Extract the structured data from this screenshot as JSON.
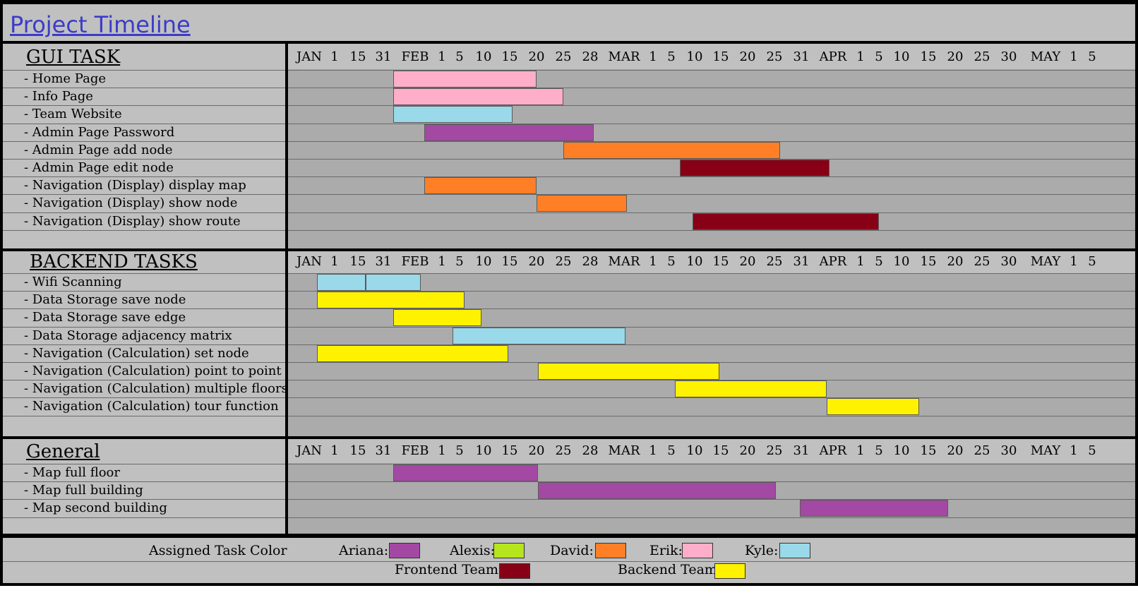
{
  "title": "Project Timeline",
  "tick_labels": [
    "JAN",
    "1",
    "15",
    "31",
    "FEB",
    "1",
    "5",
    "10",
    "15",
    "20",
    "25",
    "28",
    "MAR",
    "1",
    "5",
    "10",
    "15",
    "20",
    "25",
    "31",
    "APR",
    "1",
    "5",
    "10",
    "15",
    "20",
    "25",
    "30",
    "MAY",
    "1",
    "5"
  ],
  "colors": {
    "ariana": "#a349a4",
    "alexis": "#b5e61d",
    "david": "#ff7f27",
    "erik": "#ffaec9",
    "kyle": "#99d9ea",
    "frontend": "#880015",
    "backend": "#fff200"
  },
  "chart_data": {
    "type": "gantt",
    "x_units": "tick index (position within the printed tick_labels sequence)",
    "sections": [
      {
        "title": "GUI TASK",
        "tasks": [
          {
            "label": "- Home Page",
            "start": 3.3,
            "end": 9.0,
            "owner": "erik"
          },
          {
            "label": "- Info Page",
            "start": 3.3,
            "end": 10.0,
            "owner": "erik"
          },
          {
            "label": "- Team Website",
            "start": 3.3,
            "end": 8.1,
            "owner": "kyle"
          },
          {
            "label": "- Admin Page Password",
            "start": 4.35,
            "end": 11.1,
            "owner": "ariana"
          },
          {
            "label": "- Admin Page add node",
            "start": 10.0,
            "end": 18.2,
            "owner": "david"
          },
          {
            "label": "- Admin Page edit node",
            "start": 14.35,
            "end": 19.9,
            "owner": "frontend"
          },
          {
            "label": "- Navigation (Display) display map",
            "start": 4.35,
            "end": 9.0,
            "owner": "david"
          },
          {
            "label": "- Navigation (Display) show node",
            "start": 9.0,
            "end": 12.1,
            "owner": "david"
          },
          {
            "label": "- Navigation (Display) show route",
            "start": 14.9,
            "end": 22.0,
            "owner": "frontend"
          }
        ]
      },
      {
        "title": "BACKEND TASKS",
        "tasks": [
          {
            "label": "- Wifi Scanning",
            "start": 0.3,
            "end": 4.2,
            "owner": "kyle",
            "split": 2.3
          },
          {
            "label": "- Data Storage save node",
            "start": 0.3,
            "end": 6.2,
            "owner": "backend"
          },
          {
            "label": "- Data Storage save edge",
            "start": 3.3,
            "end": 6.9,
            "owner": "backend"
          },
          {
            "label": "- Data Storage adjacency matrix",
            "start": 5.6,
            "end": 12.05,
            "owner": "kyle"
          },
          {
            "label": "- Navigation (Calculation) set node",
            "start": 0.3,
            "end": 7.95,
            "owner": "backend"
          },
          {
            "label": "- Navigation (Calculation) point to point",
            "start": 9.05,
            "end": 15.95,
            "owner": "backend"
          },
          {
            "label": "- Navigation (Calculation) multiple floors",
            "start": 14.15,
            "end": 19.8,
            "owner": "backend"
          },
          {
            "label": "- Navigation (Calculation) tour function",
            "start": 19.8,
            "end": 23.65,
            "owner": "backend"
          }
        ]
      },
      {
        "title": "General",
        "tasks": [
          {
            "label": "- Map full floor",
            "start": 3.3,
            "end": 9.05,
            "owner": "ariana"
          },
          {
            "label": "- Map full building",
            "start": 9.05,
            "end": 18.05,
            "owner": "ariana"
          },
          {
            "label": "- Map second building",
            "start": 18.95,
            "end": 24.75,
            "owner": "ariana"
          }
        ]
      }
    ]
  },
  "legend": {
    "title": "Assigned Task Color",
    "entries": [
      {
        "label": "Ariana:",
        "key": "ariana"
      },
      {
        "label": "Alexis:",
        "key": "alexis"
      },
      {
        "label": "David:",
        "key": "david"
      },
      {
        "label": "Erik:",
        "key": "erik"
      },
      {
        "label": "Kyle:",
        "key": "kyle"
      },
      {
        "label": "Frontend Team:",
        "key": "frontend"
      },
      {
        "label": "Backend Team:",
        "key": "backend"
      }
    ]
  }
}
